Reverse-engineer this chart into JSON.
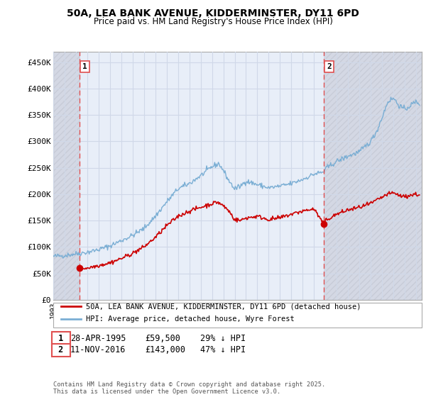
{
  "title": "50A, LEA BANK AVENUE, KIDDERMINSTER, DY11 6PD",
  "subtitle": "Price paid vs. HM Land Registry's House Price Index (HPI)",
  "ylim": [
    0,
    470000
  ],
  "yticks": [
    0,
    50000,
    100000,
    150000,
    200000,
    250000,
    300000,
    350000,
    400000,
    450000
  ],
  "ytick_labels": [
    "£0",
    "£50K",
    "£100K",
    "£150K",
    "£200K",
    "£250K",
    "£300K",
    "£350K",
    "£400K",
    "£450K"
  ],
  "xlim_start": 1993.0,
  "xlim_end": 2025.5,
  "transaction1_date": 1995.32,
  "transaction1_price": 59500,
  "transaction2_date": 2016.86,
  "transaction2_price": 143000,
  "legend_line1": "50A, LEA BANK AVENUE, KIDDERMINSTER, DY11 6PD (detached house)",
  "legend_line2": "HPI: Average price, detached house, Wyre Forest",
  "footnote": "Contains HM Land Registry data © Crown copyright and database right 2025.\nThis data is licensed under the Open Government Licence v3.0.",
  "line_color_red": "#cc0000",
  "line_color_blue": "#7aaed4",
  "grid_color": "#d0d8e8",
  "vline_color": "#e05050",
  "bg_color": "#e8eef8",
  "hatch_color": "#c8ccd8",
  "hpi_anchors": [
    [
      1993.0,
      82000
    ],
    [
      1994.0,
      84000
    ],
    [
      1995.0,
      87000
    ],
    [
      1996.0,
      90000
    ],
    [
      1997.0,
      95000
    ],
    [
      1998.0,
      102000
    ],
    [
      1999.0,
      112000
    ],
    [
      2000.0,
      122000
    ],
    [
      2001.0,
      135000
    ],
    [
      2002.0,
      158000
    ],
    [
      2003.0,
      185000
    ],
    [
      2004.0,
      210000
    ],
    [
      2005.0,
      220000
    ],
    [
      2006.0,
      235000
    ],
    [
      2007.0,
      252000
    ],
    [
      2007.6,
      258000
    ],
    [
      2008.0,
      245000
    ],
    [
      2008.5,
      225000
    ],
    [
      2009.0,
      210000
    ],
    [
      2009.5,
      215000
    ],
    [
      2010.0,
      225000
    ],
    [
      2011.0,
      218000
    ],
    [
      2012.0,
      212000
    ],
    [
      2013.0,
      215000
    ],
    [
      2014.0,
      220000
    ],
    [
      2015.0,
      228000
    ],
    [
      2016.0,
      238000
    ],
    [
      2016.86,
      242000
    ],
    [
      2017.0,
      248000
    ],
    [
      2018.0,
      262000
    ],
    [
      2019.0,
      272000
    ],
    [
      2020.0,
      280000
    ],
    [
      2021.0,
      300000
    ],
    [
      2021.5,
      318000
    ],
    [
      2022.0,
      345000
    ],
    [
      2022.5,
      375000
    ],
    [
      2023.0,
      382000
    ],
    [
      2023.5,
      368000
    ],
    [
      2024.0,
      360000
    ],
    [
      2024.5,
      368000
    ],
    [
      2025.0,
      375000
    ],
    [
      2025.3,
      372000
    ]
  ],
  "price_anchors": [
    [
      1995.32,
      59500
    ],
    [
      1996.0,
      60000
    ],
    [
      1997.0,
      65000
    ],
    [
      1998.0,
      70000
    ],
    [
      1999.0,
      78000
    ],
    [
      2000.0,
      88000
    ],
    [
      2001.0,
      100000
    ],
    [
      2002.0,
      118000
    ],
    [
      2003.0,
      140000
    ],
    [
      2004.0,
      158000
    ],
    [
      2005.0,
      168000
    ],
    [
      2006.0,
      175000
    ],
    [
      2007.0,
      182000
    ],
    [
      2007.5,
      185000
    ],
    [
      2008.0,
      178000
    ],
    [
      2008.5,
      168000
    ],
    [
      2009.0,
      152000
    ],
    [
      2009.5,
      150000
    ],
    [
      2010.0,
      155000
    ],
    [
      2011.0,
      158000
    ],
    [
      2012.0,
      152000
    ],
    [
      2013.0,
      155000
    ],
    [
      2014.0,
      162000
    ],
    [
      2015.0,
      168000
    ],
    [
      2016.0,
      172000
    ],
    [
      2016.86,
      143000
    ],
    [
      2017.0,
      150000
    ],
    [
      2018.0,
      162000
    ],
    [
      2019.0,
      170000
    ],
    [
      2020.0,
      175000
    ],
    [
      2021.0,
      182000
    ],
    [
      2021.5,
      188000
    ],
    [
      2022.0,
      194000
    ],
    [
      2022.5,
      200000
    ],
    [
      2023.0,
      202000
    ],
    [
      2023.5,
      198000
    ],
    [
      2024.0,
      195000
    ],
    [
      2024.5,
      198000
    ],
    [
      2025.0,
      200000
    ],
    [
      2025.3,
      198000
    ]
  ]
}
